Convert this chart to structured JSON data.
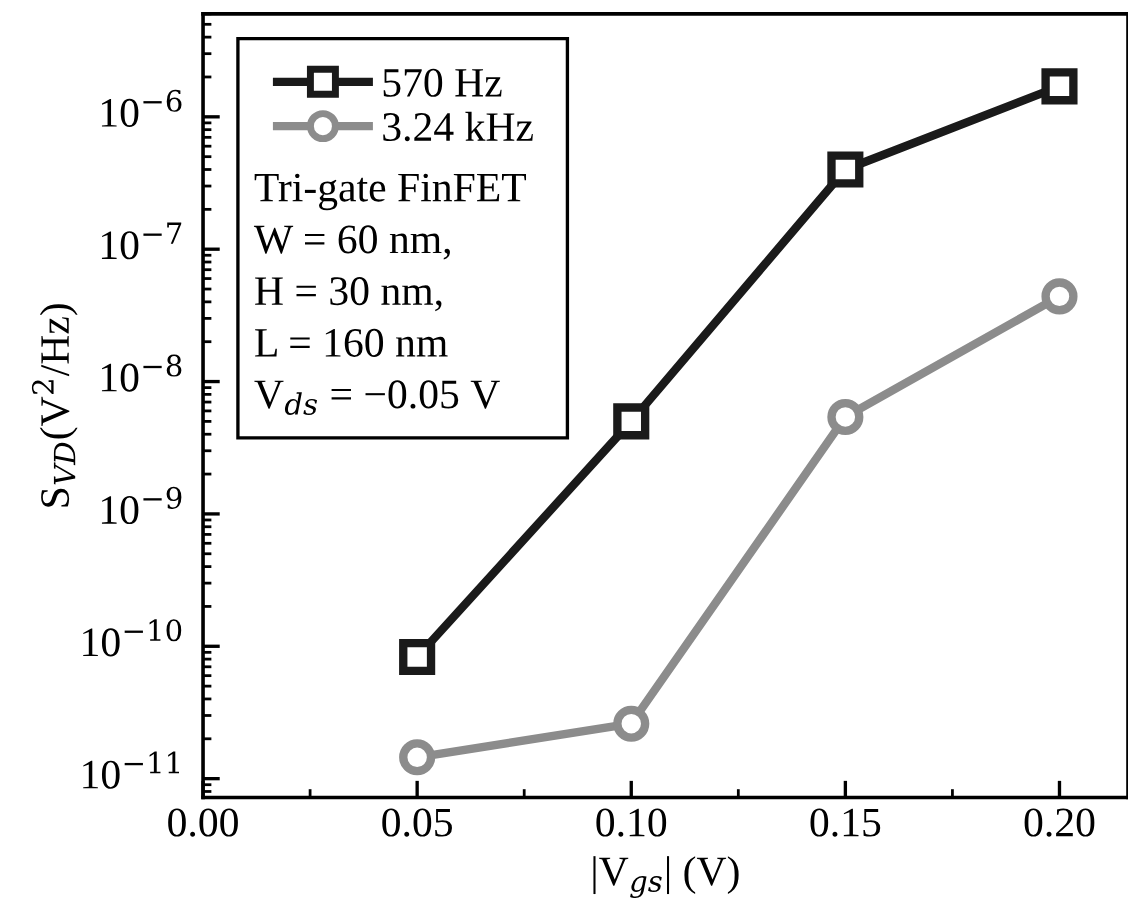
{
  "chart_data": {
    "type": "line",
    "xlabel": "|V$_{gs}$| (V)",
    "ylabel": "S$_{VD}$(V$^{2}$/Hz)",
    "log": "y",
    "x": [
      0.05,
      0.1,
      0.15,
      0.2
    ],
    "series": [
      {
        "name": "570 Hz",
        "color": "#1a1a1a",
        "marker": "square",
        "values": [
          8.3e-11,
          5e-09,
          4e-07,
          1.7e-06
        ]
      },
      {
        "name": "3.24 kHz",
        "color": "#8c8c8c",
        "marker": "circle",
        "values": [
          1.45e-11,
          2.6e-11,
          5.4e-09,
          4.4e-08
        ]
      }
    ],
    "xlim": [
      0.0,
      0.216
    ],
    "ylim": [
      7.2e-12,
      6e-06
    ],
    "xticks": [
      {
        "value": 0.0,
        "label": "0.00"
      },
      {
        "value": 0.05,
        "label": "0.05"
      },
      {
        "value": 0.1,
        "label": "0.10"
      },
      {
        "value": 0.15,
        "label": "0.15"
      },
      {
        "value": 0.2,
        "label": "0.20"
      }
    ],
    "yticks": [
      {
        "value": 1e-11,
        "label": "10$^{−11}$"
      },
      {
        "value": 1e-10,
        "label": "10$^{−10}$"
      },
      {
        "value": 1e-09,
        "label": "10$^{−9}$"
      },
      {
        "value": 1e-08,
        "label": "10$^{−8}$"
      },
      {
        "value": 1e-07,
        "label": "10$^{−7}$"
      },
      {
        "value": 1e-06,
        "label": "10$^{−6}$"
      }
    ],
    "legend": "top left",
    "grid": false,
    "line_style": "solid",
    "annotations": [
      "Tri-gate FinFET",
      "W = 60 nm,",
      "H = 30 nm,",
      "L = 160 nm",
      "V$_{ds}$ = −0.05 V"
    ]
  }
}
